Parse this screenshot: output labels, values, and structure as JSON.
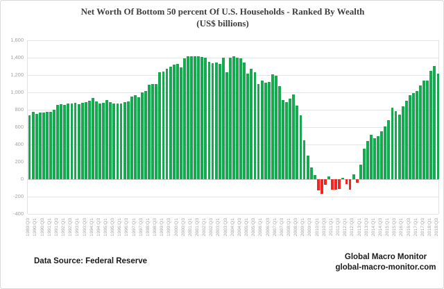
{
  "title": {
    "line1": "Net Worth Of Bottom 50 percent Of U.S. Households - Ranked By Wealth",
    "line2": "(US$ billions)"
  },
  "footer": {
    "data_source": "Data Source: Federal Reserve",
    "attribution_line1": "Global Macro Monitor",
    "attribution_line2": "global-macro-monitor.com"
  },
  "colors": {
    "positive_bar": "#17A94F",
    "negative_bar": "#EE2722",
    "gridline": "#e4e4e4",
    "axis_text": "#a3a3a3",
    "title_text": "#3d3d3d"
  },
  "chart_data": {
    "type": "bar",
    "title": "Net Worth Of Bottom 50 percent Of U.S. Households - Ranked By Wealth",
    "subtitle": "(US$ billions)",
    "xlabel": "",
    "ylabel": "",
    "ylim": [
      -400,
      1600
    ],
    "grid": "horizontal",
    "legend": "none",
    "y_tick_values": [
      1600,
      1400,
      1200,
      1000,
      800,
      600,
      400,
      200,
      0,
      -200,
      -400
    ],
    "y_tick_labels": [
      "1,600",
      "1,400",
      "1,200",
      "1,000",
      "800",
      "600",
      "400",
      "200",
      "0",
      "-200",
      "-400"
    ],
    "x_tick_labels": [
      "1989:Q3",
      "1990:Q1",
      "1990:Q3",
      "1991:Q1",
      "1991:Q3",
      "1992:Q1",
      "1992:Q3",
      "1993:Q1",
      "1993:Q3",
      "1994:Q1",
      "1994:Q3",
      "1995:Q1",
      "1995:Q3",
      "1996:Q1",
      "1996:Q3",
      "1997:Q1",
      "1997:Q3",
      "1998:Q1",
      "1998:Q3",
      "1999:Q1",
      "1999:Q3",
      "2000:Q1",
      "2000:Q3",
      "2001:Q1",
      "2001:Q3",
      "2002:Q1",
      "2002:Q3",
      "2003:Q1",
      "2003:Q3",
      "2004:Q1",
      "2004:Q3",
      "2005:Q1",
      "2005:Q3",
      "2006:Q1",
      "2006:Q3",
      "2007:Q1",
      "2007:Q3",
      "2008:Q1",
      "2008:Q3",
      "2009:Q1",
      "2009:Q3",
      "2010:Q1",
      "2010:Q3",
      "2011:Q1",
      "2011:Q3",
      "2012:Q1",
      "2012:Q3",
      "2013:Q1",
      "2013:Q3",
      "2014:Q1",
      "2014:Q3",
      "2015:Q1",
      "2015:Q3",
      "2016:Q1",
      "2016:Q3",
      "2017:Q1",
      "2017:Q3",
      "2018:Q1",
      "2018:Q3"
    ],
    "x_tick_every_n_bars": 2,
    "categories": [
      "1989:Q3",
      "1989:Q4",
      "1990:Q1",
      "1990:Q2",
      "1990:Q3",
      "1990:Q4",
      "1991:Q1",
      "1991:Q2",
      "1991:Q3",
      "1991:Q4",
      "1992:Q1",
      "1992:Q2",
      "1992:Q3",
      "1992:Q4",
      "1993:Q1",
      "1993:Q2",
      "1993:Q3",
      "1993:Q4",
      "1994:Q1",
      "1994:Q2",
      "1994:Q3",
      "1994:Q4",
      "1995:Q1",
      "1995:Q2",
      "1995:Q3",
      "1995:Q4",
      "1996:Q1",
      "1996:Q2",
      "1996:Q3",
      "1996:Q4",
      "1997:Q1",
      "1997:Q2",
      "1997:Q3",
      "1997:Q4",
      "1998:Q1",
      "1998:Q2",
      "1998:Q3",
      "1998:Q4",
      "1999:Q1",
      "1999:Q2",
      "1999:Q3",
      "1999:Q4",
      "2000:Q1",
      "2000:Q2",
      "2000:Q3",
      "2000:Q4",
      "2001:Q1",
      "2001:Q2",
      "2001:Q3",
      "2001:Q4",
      "2002:Q1",
      "2002:Q2",
      "2002:Q3",
      "2002:Q4",
      "2003:Q1",
      "2003:Q2",
      "2003:Q3",
      "2003:Q4",
      "2004:Q1",
      "2004:Q2",
      "2004:Q3",
      "2004:Q4",
      "2005:Q1",
      "2005:Q2",
      "2005:Q3",
      "2005:Q4",
      "2006:Q1",
      "2006:Q2",
      "2006:Q3",
      "2006:Q4",
      "2007:Q1",
      "2007:Q2",
      "2007:Q3",
      "2007:Q4",
      "2008:Q1",
      "2008:Q2",
      "2008:Q3",
      "2008:Q4",
      "2009:Q1",
      "2009:Q2",
      "2009:Q3",
      "2009:Q4",
      "2010:Q1",
      "2010:Q2",
      "2010:Q3",
      "2010:Q4",
      "2011:Q1",
      "2011:Q2",
      "2011:Q3",
      "2011:Q4",
      "2012:Q1",
      "2012:Q2",
      "2012:Q3",
      "2012:Q4",
      "2013:Q1",
      "2013:Q2",
      "2013:Q3",
      "2013:Q4",
      "2014:Q1",
      "2014:Q2",
      "2014:Q3",
      "2014:Q4",
      "2015:Q1",
      "2015:Q2",
      "2015:Q3",
      "2015:Q4",
      "2016:Q1",
      "2016:Q2",
      "2016:Q3",
      "2016:Q4",
      "2017:Q1",
      "2017:Q2",
      "2017:Q3",
      "2017:Q4",
      "2018:Q1",
      "2018:Q2",
      "2018:Q3"
    ],
    "values": [
      740,
      780,
      755,
      765,
      770,
      775,
      780,
      800,
      855,
      865,
      860,
      870,
      875,
      880,
      868,
      878,
      890,
      905,
      935,
      900,
      875,
      882,
      910,
      886,
      875,
      870,
      876,
      886,
      900,
      955,
      966,
      944,
      1000,
      1016,
      1088,
      1100,
      1094,
      1230,
      1240,
      1270,
      1300,
      1320,
      1330,
      1290,
      1390,
      1420,
      1414,
      1420,
      1415,
      1408,
      1400,
      1350,
      1340,
      1346,
      1330,
      1400,
      1230,
      1400,
      1420,
      1400,
      1390,
      1345,
      1215,
      1270,
      1235,
      1100,
      1135,
      1110,
      1120,
      1210,
      1190,
      1070,
      915,
      890,
      930,
      980,
      850,
      740,
      450,
      275,
      140,
      45,
      -130,
      -170,
      -65,
      30,
      -118,
      -122,
      -110,
      20,
      -55,
      -122,
      55,
      -40,
      170,
      350,
      440,
      510,
      475,
      500,
      555,
      610,
      680,
      824,
      788,
      745,
      843,
      908,
      970,
      992,
      1015,
      1077,
      1133,
      1139,
      1246,
      1302,
      1216
    ]
  }
}
